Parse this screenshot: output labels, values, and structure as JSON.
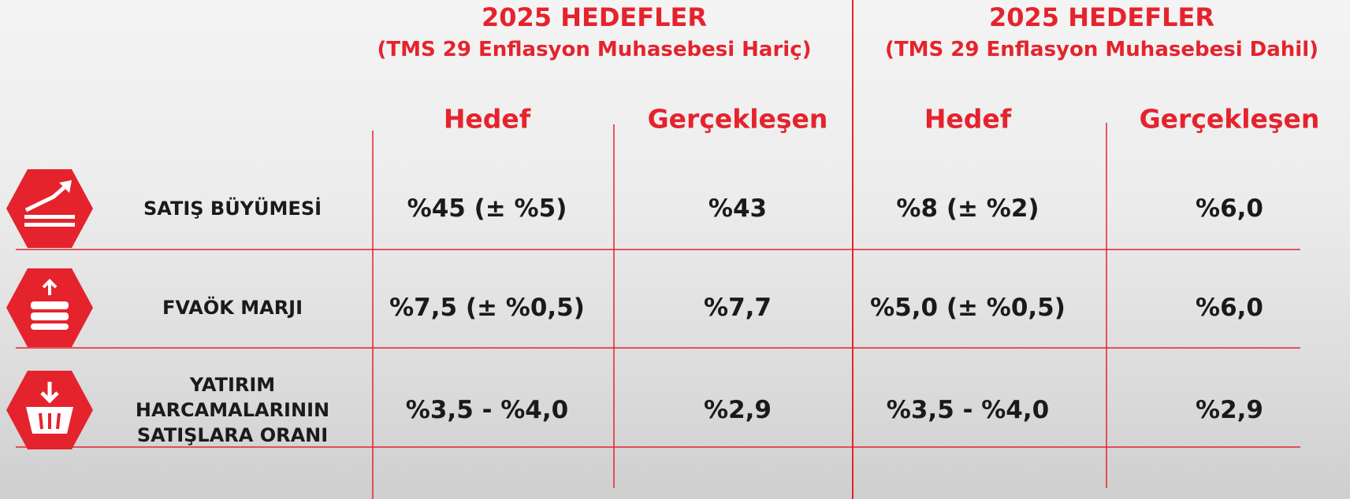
{
  "groups": [
    {
      "title": "2025 HEDEFLER",
      "subtitle": "(TMS 29 Enflasyon Muhasebesi Hariç)",
      "columns": [
        "Hedef",
        "Gerçekleşen"
      ]
    },
    {
      "title": "2025 HEDEFLER",
      "subtitle": "(TMS 29 Enflasyon Muhasebesi Dahil)",
      "columns": [
        "Hedef",
        "Gerçekleşen"
      ]
    }
  ],
  "rows": [
    {
      "label": [
        "SATIŞ BÜYÜMESİ"
      ],
      "values": [
        "%45 (± %5)",
        "%43",
        "%8 (± %2)",
        "%6,0"
      ]
    },
    {
      "label": [
        "FVAÖK MARJI"
      ],
      "values": [
        "%7,5 (± %0,5)",
        "%7,7",
        "%5,0 (± %0,5)",
        "%6,0"
      ]
    },
    {
      "label": [
        "YATIRIM",
        "HARCAMALARININ",
        "SATIŞLARA ORANI"
      ],
      "values": [
        "%3,5 - %4,0",
        "%2,9",
        "%3,5 - %4,0",
        "%2,9"
      ]
    }
  ]
}
